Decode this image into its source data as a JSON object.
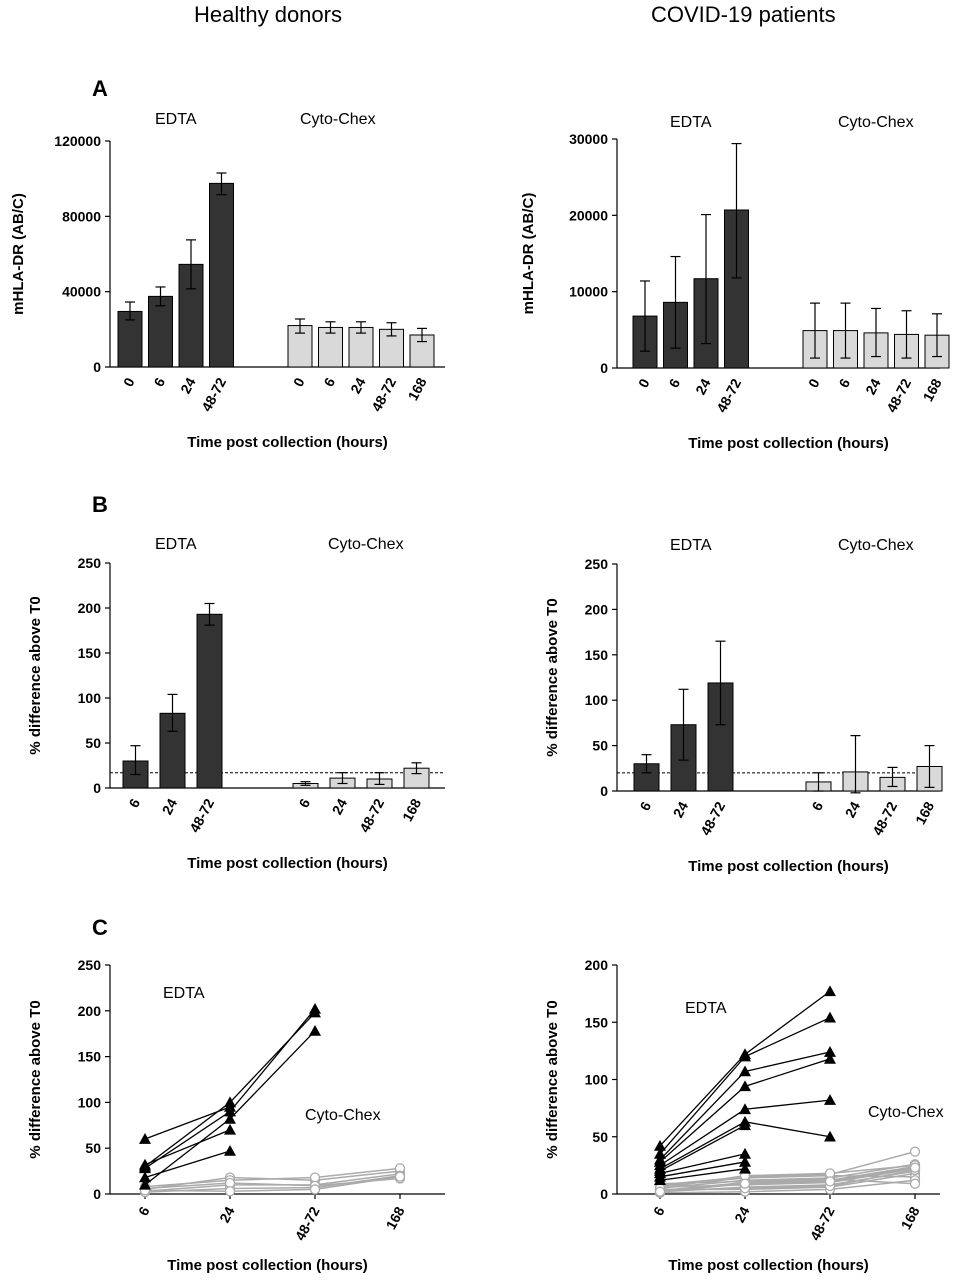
{
  "headers": {
    "left": "Healthy donors",
    "right": "COVID-19 patients"
  },
  "panels": {
    "A": "A",
    "B": "B",
    "C": "C"
  },
  "colors": {
    "edta_fill": "#333333",
    "cytochex_fill": "#d9d9d9",
    "cytochex_line": "#aaaaaa",
    "edta_line": "#000000"
  },
  "chart_data": [
    {
      "id": "A_healthy",
      "type": "bar",
      "ylabel": "mHLA-DR (AB/C)",
      "xlabel": "Time post collection (hours)",
      "ylim": [
        0,
        120000
      ],
      "yticks": [
        0,
        40000,
        80000,
        120000
      ],
      "groups": [
        {
          "label": "EDTA",
          "categories": [
            "0",
            "6",
            "24",
            "48-72"
          ],
          "values": [
            29500,
            37500,
            54500,
            97500
          ],
          "err_low": [
            25000,
            32500,
            41500,
            91500
          ],
          "err_high": [
            34500,
            42500,
            67500,
            103000
          ]
        },
        {
          "label": "Cyto-Chex",
          "categories": [
            "0",
            "6",
            "24",
            "48-72",
            "168"
          ],
          "values": [
            22000,
            21000,
            21000,
            20000,
            17000
          ],
          "err_low": [
            18000,
            18000,
            18000,
            16500,
            13500
          ],
          "err_high": [
            25500,
            24000,
            24000,
            23500,
            20500
          ]
        }
      ]
    },
    {
      "id": "A_covid",
      "type": "bar",
      "ylabel": "mHLA-DR (AB/C)",
      "xlabel": "Time post collection (hours)",
      "ylim": [
        0,
        30000
      ],
      "yticks": [
        0,
        10000,
        20000,
        30000
      ],
      "groups": [
        {
          "label": "EDTA",
          "categories": [
            "0",
            "6",
            "24",
            "48-72"
          ],
          "values": [
            6800,
            8600,
            11700,
            20700
          ],
          "err_low": [
            2200,
            2600,
            3200,
            11800
          ],
          "err_high": [
            11400,
            14600,
            20100,
            29400
          ]
        },
        {
          "label": "Cyto-Chex",
          "categories": [
            "0",
            "6",
            "24",
            "48-72",
            "168"
          ],
          "values": [
            4900,
            4900,
            4600,
            4400,
            4300
          ],
          "err_low": [
            1300,
            1300,
            1500,
            1300,
            1500
          ],
          "err_high": [
            8500,
            8500,
            7800,
            7500,
            7100
          ]
        }
      ]
    },
    {
      "id": "B_healthy",
      "type": "bar",
      "ylabel": "% difference above T0",
      "xlabel": "Time post collection (hours)",
      "ylim": [
        0,
        250
      ],
      "yticks": [
        0,
        50,
        100,
        150,
        200,
        250
      ],
      "reference_line": 17,
      "groups": [
        {
          "label": "EDTA",
          "categories": [
            "6",
            "24",
            "48-72"
          ],
          "values": [
            30,
            83,
            193
          ],
          "err_low": [
            15,
            63,
            181
          ],
          "err_high": [
            47,
            104,
            205
          ]
        },
        {
          "label": "Cyto-Chex",
          "categories": [
            "6",
            "24",
            "48-72",
            "168"
          ],
          "values": [
            5,
            11,
            10,
            22
          ],
          "err_low": [
            3,
            5,
            4,
            16
          ],
          "err_high": [
            7,
            17,
            17,
            28
          ]
        }
      ]
    },
    {
      "id": "B_covid",
      "type": "bar",
      "ylabel": "% difference above T0",
      "xlabel": "Time post collection (hours)",
      "ylim": [
        0,
        250
      ],
      "yticks": [
        0,
        50,
        100,
        150,
        200,
        250
      ],
      "reference_line": 20,
      "groups": [
        {
          "label": "EDTA",
          "categories": [
            "6",
            "24",
            "48-72"
          ],
          "values": [
            30,
            73,
            119
          ],
          "err_low": [
            20,
            34,
            73
          ],
          "err_high": [
            40,
            112,
            165
          ]
        },
        {
          "label": "Cyto-Chex",
          "categories": [
            "6",
            "24",
            "48-72",
            "168"
          ],
          "values": [
            10,
            21,
            15,
            27
          ],
          "err_low": [
            0,
            -2,
            5,
            4
          ],
          "err_high": [
            20,
            61,
            26,
            50
          ]
        }
      ]
    },
    {
      "id": "C_healthy",
      "type": "line",
      "ylabel": "% difference above T0",
      "xlabel": "Time post collection (hours)",
      "ylim": [
        0,
        250
      ],
      "yticks": [
        0,
        50,
        100,
        150,
        200,
        250
      ],
      "categories": [
        "6",
        "24",
        "48-72",
        "168"
      ],
      "group_labels": {
        "edta": "EDTA",
        "cytochex": "Cyto-Chex"
      },
      "edta_series": [
        [
          60,
          95,
          null,
          null
        ],
        [
          30,
          100,
          198,
          null
        ],
        [
          28,
          90,
          202,
          null
        ],
        [
          32,
          70,
          null,
          null
        ],
        [
          18,
          47,
          null,
          null
        ],
        [
          10,
          82,
          178,
          null
        ]
      ],
      "cytochex_series": [
        [
          5,
          18,
          15,
          25
        ],
        [
          3,
          10,
          10,
          22
        ],
        [
          8,
          15,
          18,
          28
        ],
        [
          2,
          6,
          7,
          20
        ],
        [
          6,
          12,
          9,
          17
        ],
        [
          4,
          3,
          5,
          19
        ]
      ]
    },
    {
      "id": "C_covid",
      "type": "line",
      "ylabel": "% difference above T0",
      "xlabel": "Time post collection (hours)",
      "ylim": [
        0,
        200
      ],
      "yticks": [
        0,
        50,
        100,
        150,
        200
      ],
      "categories": [
        "6",
        "24",
        "48-72",
        "168"
      ],
      "group_labels": {
        "edta": "EDTA",
        "cytochex": "Cyto-Chex"
      },
      "edta_series": [
        [
          42,
          122,
          177,
          null
        ],
        [
          35,
          120,
          154,
          null
        ],
        [
          30,
          107,
          124,
          null
        ],
        [
          28,
          94,
          118,
          null
        ],
        [
          25,
          74,
          82,
          null
        ],
        [
          22,
          63,
          50,
          null
        ],
        [
          20,
          60,
          null,
          null
        ],
        [
          18,
          35,
          null,
          null
        ],
        [
          15,
          28,
          null,
          null
        ],
        [
          12,
          22,
          null,
          null
        ]
      ],
      "cytochex_series": [
        [
          8,
          15,
          17,
          37
        ],
        [
          5,
          12,
          14,
          26
        ],
        [
          3,
          10,
          12,
          24
        ],
        [
          6,
          8,
          10,
          22
        ],
        [
          2,
          6,
          8,
          20
        ],
        [
          4,
          4,
          6,
          18
        ],
        [
          7,
          14,
          16,
          15
        ],
        [
          1,
          2,
          4,
          12
        ],
        [
          9,
          11,
          13,
          9
        ],
        [
          3,
          5,
          7,
          21
        ],
        [
          5,
          16,
          18,
          25
        ],
        [
          2,
          9,
          11,
          23
        ]
      ]
    }
  ]
}
